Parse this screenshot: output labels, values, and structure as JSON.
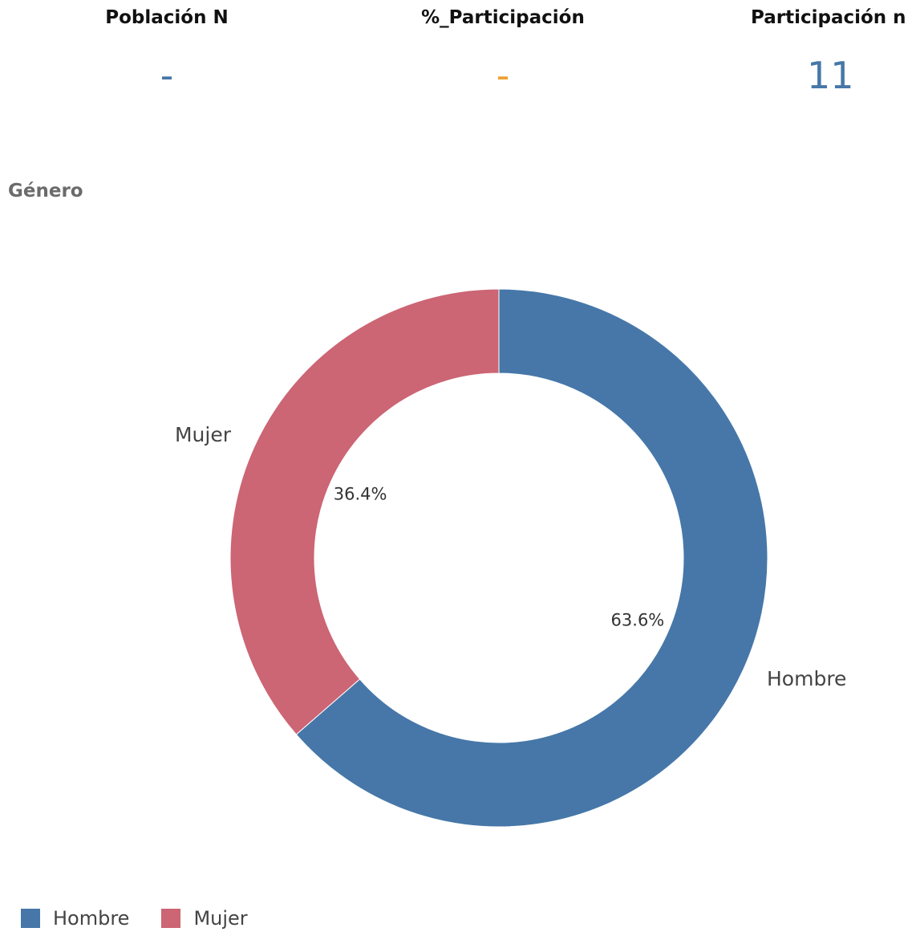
{
  "kpis": [
    {
      "title": "Población N",
      "value": "-",
      "color": "#4677a8"
    },
    {
      "title": "%_Participación",
      "value": "-",
      "color": "#f0a030"
    },
    {
      "title": "Participación n",
      "value": "11",
      "color": "#4677a8"
    }
  ],
  "chart_data": {
    "type": "pie",
    "variant": "donut",
    "title": "Género",
    "categories": [
      "Hombre",
      "Mujer"
    ],
    "values": [
      63.6,
      36.4
    ],
    "value_labels": [
      "63.6%",
      "36.4%"
    ],
    "colors": [
      "#4677a8",
      "#cc6574"
    ],
    "legend_position": "bottom-left"
  }
}
